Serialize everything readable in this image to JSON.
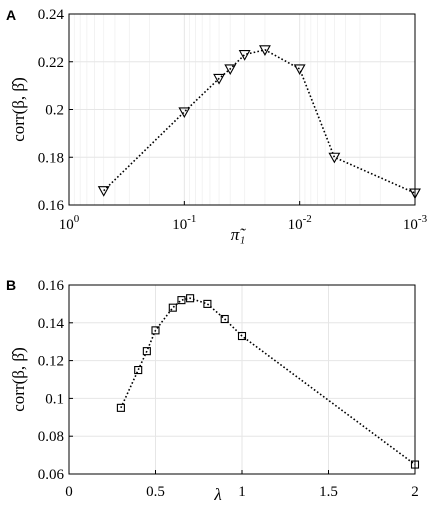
{
  "chart_data": [
    {
      "type": "line",
      "panel_label": "A",
      "x_scale": "log",
      "x_reversed": true,
      "xlim": [
        1,
        0.001
      ],
      "ylim": [
        0.16,
        0.24
      ],
      "x_tick_labels": [
        "10^0",
        "10^-1",
        "10^-2",
        "10^-3"
      ],
      "y_tick_labels": [
        "0.16",
        "0.18",
        "0.2",
        "0.22",
        "0.24"
      ],
      "xlabel": "π̃₁",
      "ylabel": "corr(β, β̂)",
      "grid": true,
      "marker": "triangle-down",
      "series": [
        {
          "x": [
            0.5,
            0.1,
            0.05,
            0.04,
            0.03,
            0.02,
            0.01,
            0.005,
            0.001
          ],
          "y": [
            0.166,
            0.199,
            0.213,
            0.217,
            0.223,
            0.225,
            0.217,
            0.18,
            0.165
          ]
        }
      ]
    },
    {
      "type": "line",
      "panel_label": "B",
      "x_scale": "linear",
      "xlim": [
        0,
        2
      ],
      "ylim": [
        0.06,
        0.16
      ],
      "x_ticks": [
        0,
        0.5,
        1,
        1.5,
        2
      ],
      "x_tick_labels": [
        "0",
        "0.5",
        "1",
        "1.5",
        "2"
      ],
      "y_ticks": [
        0.06,
        0.08,
        0.1,
        0.12,
        0.14,
        0.16
      ],
      "y_tick_labels": [
        "0.06",
        "0.08",
        "0.1",
        "0.12",
        "0.14",
        "0.16"
      ],
      "xlabel": "λ",
      "ylabel": "corr(β, β̂)",
      "grid": true,
      "marker": "square",
      "series": [
        {
          "x": [
            0.3,
            0.4,
            0.45,
            0.5,
            0.6,
            0.65,
            0.7,
            0.8,
            0.9,
            1.0,
            2.0
          ],
          "y": [
            0.095,
            0.115,
            0.125,
            0.136,
            0.148,
            0.152,
            0.153,
            0.15,
            0.142,
            0.133,
            0.065
          ]
        }
      ]
    }
  ]
}
